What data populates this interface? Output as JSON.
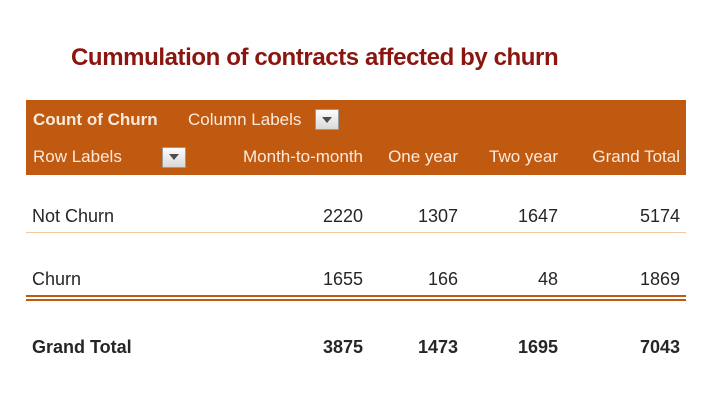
{
  "title": "Cummulation of contracts affected by churn",
  "pivot": {
    "measure": "Count of Churn",
    "column_labels": "Column Labels",
    "row_labels": "Row Labels",
    "column_headers": [
      "Month-to-month",
      "One year",
      "Two year",
      "Grand Total"
    ],
    "rows": [
      {
        "label": "Not Churn",
        "values": [
          "2220",
          "1307",
          "1647",
          "5174"
        ]
      },
      {
        "label": "Churn",
        "values": [
          "1655",
          "166",
          "48",
          "1869"
        ]
      },
      {
        "label": "Grand Total",
        "values": [
          "3875",
          "1473",
          "1695",
          "7043"
        ]
      }
    ]
  },
  "icons": {
    "column_filter": "chevron-down-icon",
    "row_filter": "chevron-down-icon"
  },
  "colors": {
    "header_bg": "#C15A11",
    "header_text": "#FBEADC",
    "title_text": "#8B150F",
    "body_text": "#262626",
    "thin_rule": "#F4C9A6",
    "double_rule": "#C15A11",
    "page_bg": "#FFFFFF"
  }
}
